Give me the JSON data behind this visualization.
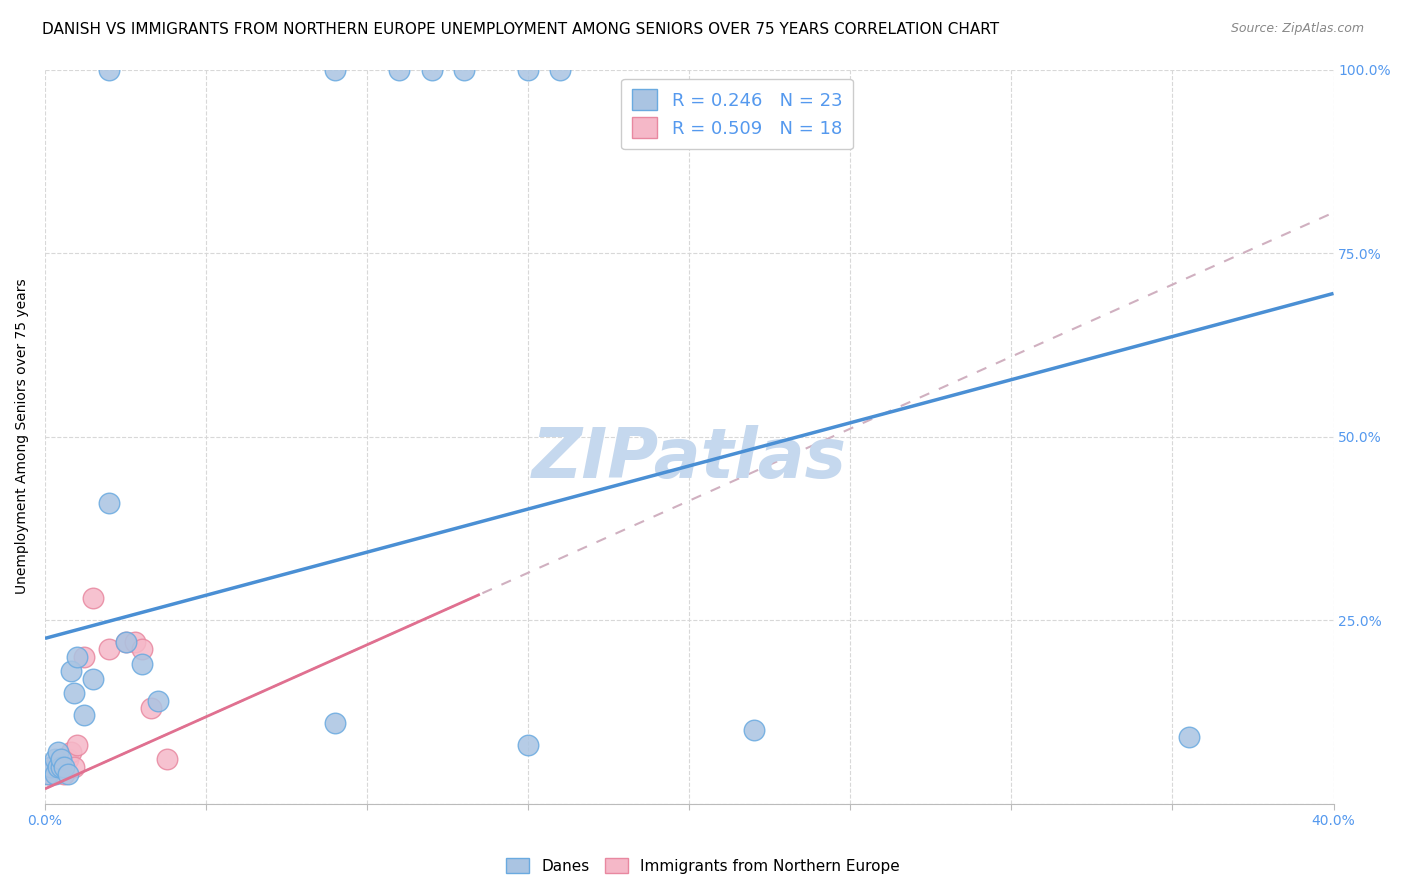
{
  "title": "DANISH VS IMMIGRANTS FROM NORTHERN EUROPE UNEMPLOYMENT AMONG SENIORS OVER 75 YEARS CORRELATION CHART",
  "source": "Source: ZipAtlas.com",
  "ylabel": "Unemployment Among Seniors over 75 years",
  "xlim": [
    0.0,
    0.4
  ],
  "ylim": [
    0.0,
    1.0
  ],
  "xticks": [
    0.0,
    0.05,
    0.1,
    0.15,
    0.2,
    0.25,
    0.3,
    0.35,
    0.4
  ],
  "yticks": [
    0.0,
    0.25,
    0.5,
    0.75,
    1.0
  ],
  "danes_x": [
    0.001,
    0.002,
    0.003,
    0.003,
    0.004,
    0.004,
    0.005,
    0.005,
    0.006,
    0.007,
    0.008,
    0.009,
    0.01,
    0.012,
    0.015,
    0.02,
    0.025,
    0.03,
    0.035,
    0.09,
    0.15,
    0.22,
    0.355
  ],
  "danes_y": [
    0.04,
    0.05,
    0.04,
    0.06,
    0.05,
    0.07,
    0.05,
    0.06,
    0.05,
    0.04,
    0.18,
    0.15,
    0.2,
    0.12,
    0.17,
    0.41,
    0.22,
    0.19,
    0.14,
    0.11,
    0.08,
    0.1,
    0.09
  ],
  "danes_high_x": [
    0.02,
    0.09,
    0.11,
    0.12,
    0.13,
    0.15,
    0.16
  ],
  "danes_high_y": [
    1.0,
    1.0,
    1.0,
    1.0,
    1.0,
    1.0,
    1.0
  ],
  "immig_x": [
    0.001,
    0.002,
    0.003,
    0.004,
    0.005,
    0.006,
    0.007,
    0.008,
    0.009,
    0.01,
    0.012,
    0.015,
    0.02,
    0.025,
    0.028,
    0.03,
    0.033,
    0.038
  ],
  "immig_y": [
    0.04,
    0.05,
    0.05,
    0.05,
    0.06,
    0.04,
    0.06,
    0.07,
    0.05,
    0.08,
    0.2,
    0.28,
    0.21,
    0.22,
    0.22,
    0.21,
    0.13,
    0.06
  ],
  "danes_R": 0.246,
  "danes_N": 23,
  "immig_R": 0.509,
  "immig_N": 18,
  "danes_color": "#aac4e2",
  "danes_edge_color": "#6aaae0",
  "danes_line_color": "#4a8fd4",
  "immig_color": "#f5b8c8",
  "immig_edge_color": "#e888a0",
  "immig_line_color": "#e07090",
  "danes_trend_y0": 0.225,
  "danes_trend_y1": 0.695,
  "immig_trend_x0": 0.0,
  "immig_trend_x1": 0.135,
  "immig_trend_y0": 0.02,
  "immig_trend_y1": 0.285,
  "immig_dash_color": "#c8a0b8",
  "immig_full_dash_color": "#d0b0c0",
  "background_color": "#ffffff",
  "grid_color": "#d8d8d8",
  "watermark_color": "#c5d8ee",
  "title_fontsize": 11,
  "axis_label_fontsize": 10,
  "tick_fontsize": 10,
  "legend_fontsize": 13,
  "tick_color": "#5599ee",
  "marker_size": 220
}
